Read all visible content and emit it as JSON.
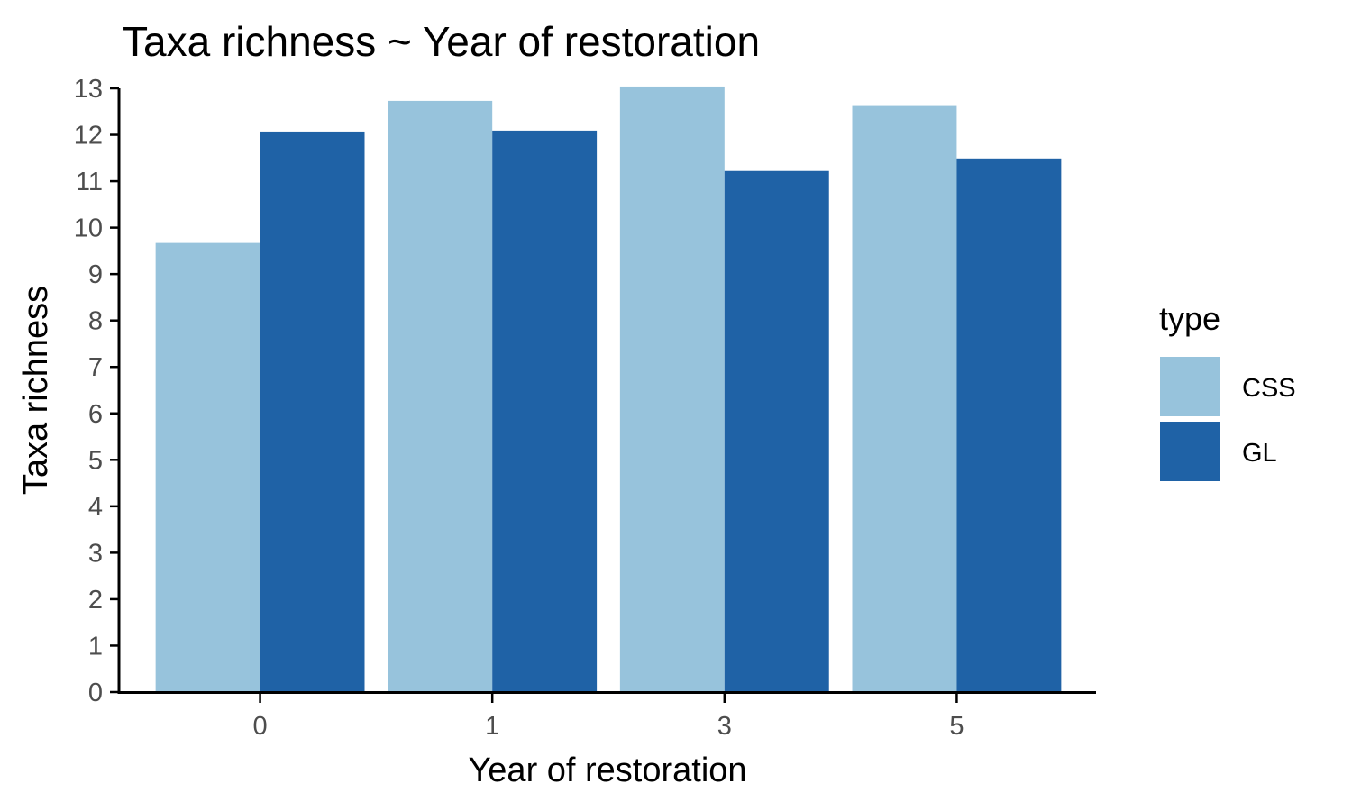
{
  "chart_data": {
    "type": "bar",
    "title": "Taxa richness ~ Year of restoration",
    "xlabel": "Year of restoration",
    "ylabel": "Taxa richness",
    "categories": [
      "0",
      "1",
      "3",
      "5"
    ],
    "series": [
      {
        "name": "CSS",
        "color": "#97c3dc",
        "values": [
          9.67,
          12.73,
          13.04,
          12.62
        ]
      },
      {
        "name": "GL",
        "color": "#1f62a6",
        "values": [
          12.07,
          12.09,
          11.22,
          11.49
        ]
      }
    ],
    "ylim": [
      0,
      13
    ],
    "yticks": [
      "0",
      "1",
      "2",
      "3",
      "4",
      "5",
      "6",
      "7",
      "8",
      "9",
      "10",
      "11",
      "12",
      "13"
    ],
    "grid": false,
    "legend": {
      "title": "type",
      "placement": "right"
    }
  }
}
